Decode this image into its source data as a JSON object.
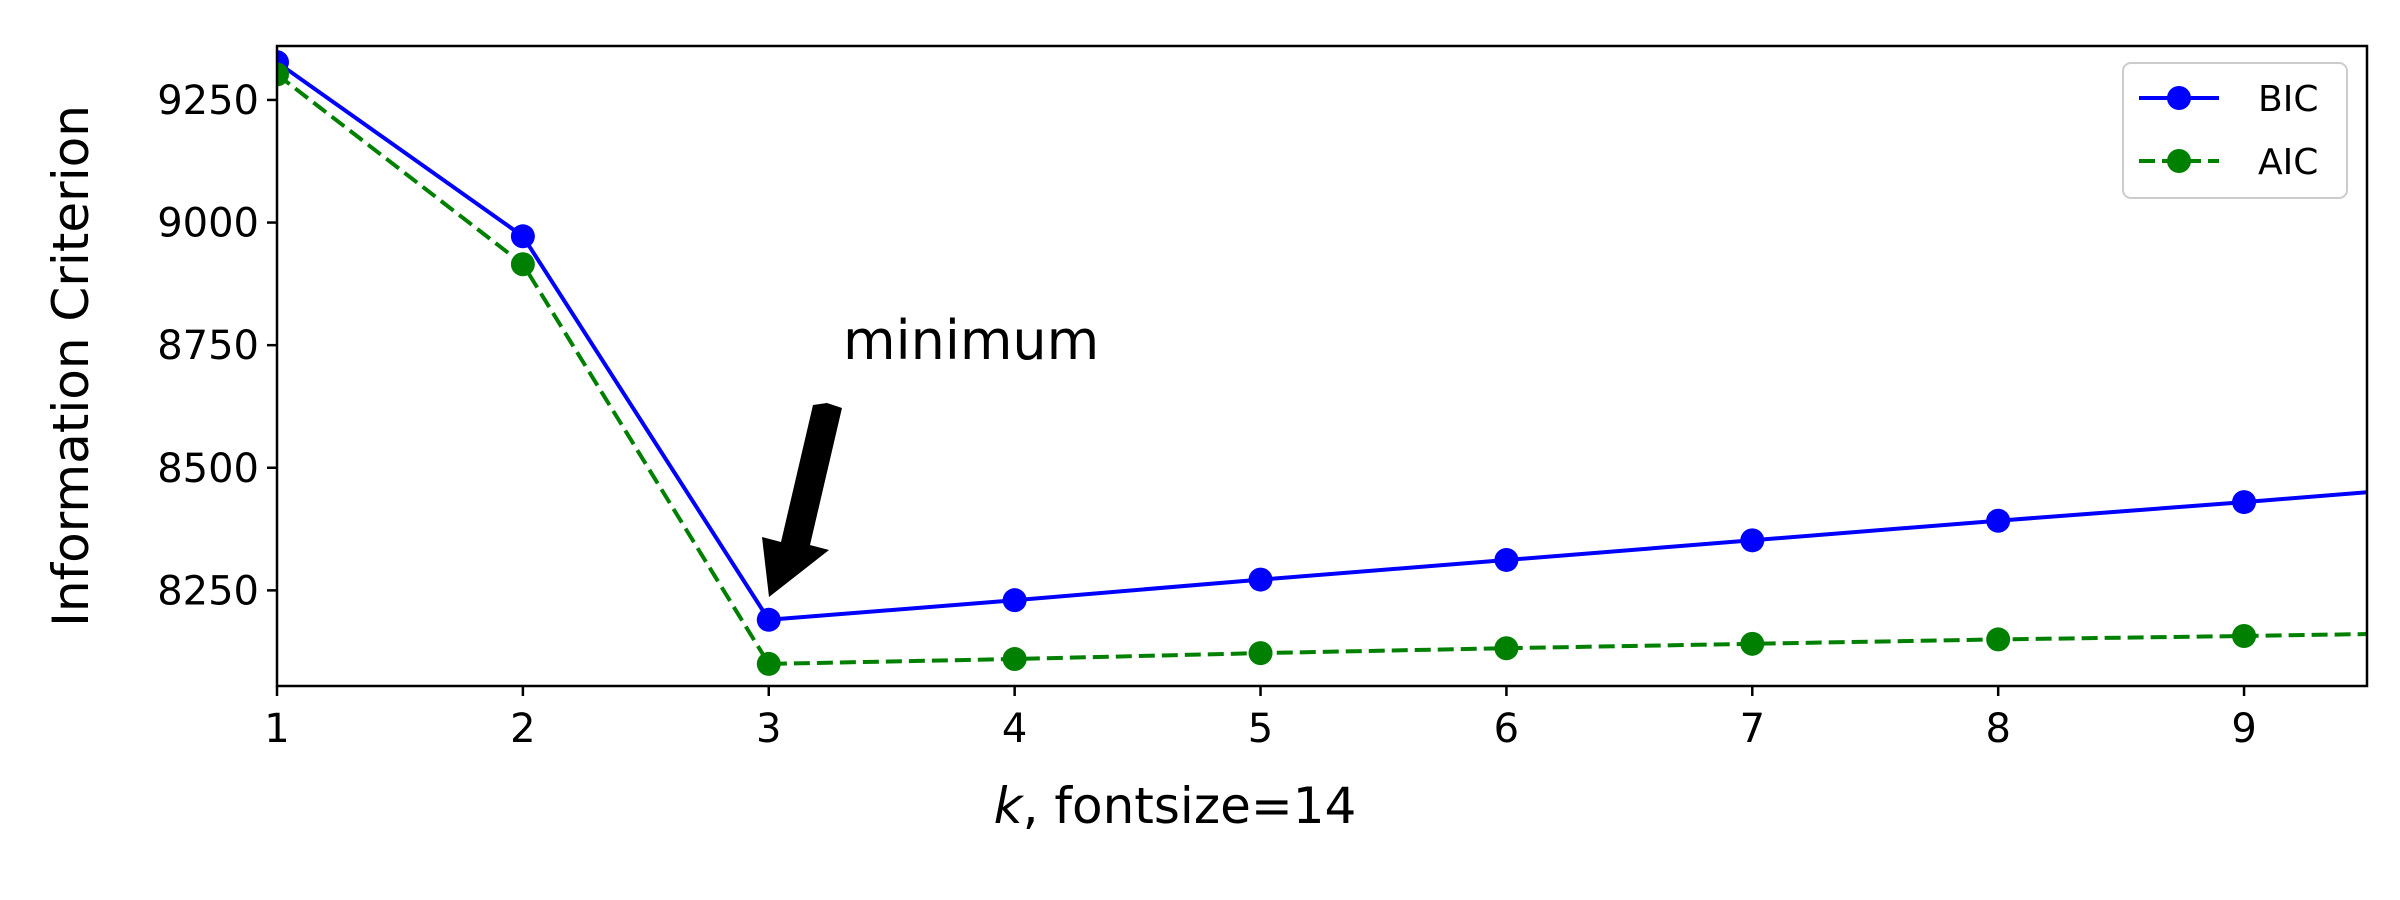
{
  "chart_data": {
    "type": "line",
    "title": "",
    "xlabel": "k, fontsize=14",
    "xlabel_italic_part": "k",
    "xlabel_rest": ", fontsize=14",
    "ylabel": "Information Criterion",
    "xlim": [
      1,
      9.5
    ],
    "ylim": [
      8055,
      9360
    ],
    "xticks": [
      "1",
      "2",
      "3",
      "4",
      "5",
      "6",
      "7",
      "8",
      "9"
    ],
    "yticks": [
      "8250",
      "8500",
      "8750",
      "9000",
      "9250"
    ],
    "grid": false,
    "legend_position": "top-right",
    "x": [
      1,
      2,
      3,
      4,
      5,
      6,
      7,
      8,
      9,
      10
    ],
    "series": [
      {
        "name": "BIC",
        "color": "#0000ff",
        "line_style": "solid",
        "marker": "circle",
        "values": [
          9327,
          8972,
          8190,
          8230,
          8272,
          8312,
          8352,
          8392,
          8430,
          8470
        ]
      },
      {
        "name": "AIC",
        "color": "#008000",
        "line_style": "dashed",
        "marker": "circle",
        "values": [
          9302,
          8915,
          8100,
          8110,
          8122,
          8132,
          8141,
          8150,
          8157,
          8165
        ]
      }
    ],
    "annotation": {
      "text": "minimum",
      "x": 3,
      "y": 8190,
      "arrow": "black"
    }
  }
}
